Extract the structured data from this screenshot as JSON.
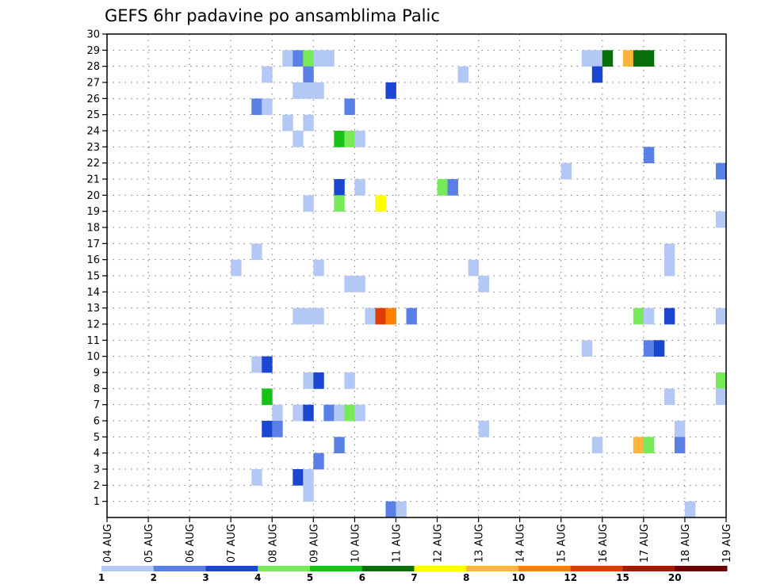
{
  "chart_data": {
    "type": "heatmap",
    "title": "GEFS 6hr padavine po ansamblima Palic",
    "xlabel": "",
    "ylabel": "",
    "x_tick_labels": [
      "04 AUG",
      "05 AUG",
      "06 AUG",
      "07 AUG",
      "08 AUG",
      "09 AUG",
      "10 AUG",
      "11 AUG",
      "12 AUG",
      "13 AUG",
      "14 AUG",
      "15 AUG",
      "16 AUG",
      "17 AUG",
      "18 AUG",
      "19 AUG"
    ],
    "x_unit": "6-hour steps (4 per day)",
    "xlim": [
      0,
      60
    ],
    "y_tick_labels": [
      "1",
      "2",
      "3",
      "4",
      "5",
      "6",
      "7",
      "8",
      "9",
      "10",
      "11",
      "12",
      "13",
      "14",
      "15",
      "16",
      "17",
      "18",
      "19",
      "20",
      "21",
      "22",
      "23",
      "24",
      "25",
      "26",
      "27",
      "28",
      "29",
      "30"
    ],
    "ylim": [
      0,
      30
    ],
    "grid": true,
    "colorbar": {
      "placement": "bottom",
      "labels": [
        "1",
        "2",
        "3",
        "4",
        "5",
        "6",
        "7",
        "8",
        "10",
        "12",
        "15",
        "20"
      ],
      "levels": [
        1,
        2,
        3,
        4,
        5,
        6,
        7,
        8,
        10,
        12,
        15,
        20,
        25
      ],
      "colors": [
        "#b4c8f5",
        "#5a80e6",
        "#1a46d2",
        "#78ea5a",
        "#16c216",
        "#0a6e0a",
        "#ffff00",
        "#ffb43c",
        "#ff7f00",
        "#e13c00",
        "#a51a00",
        "#6e0000"
      ]
    },
    "cells": [
      [
        17,
        29,
        1
      ],
      [
        18,
        29,
        2
      ],
      [
        19,
        29,
        4
      ],
      [
        20,
        29,
        1
      ],
      [
        21,
        29,
        1
      ],
      [
        46,
        29,
        1
      ],
      [
        47,
        29,
        1
      ],
      [
        48,
        29,
        6
      ],
      [
        50,
        29,
        8
      ],
      [
        51,
        29,
        6
      ],
      [
        52,
        29,
        6
      ],
      [
        15,
        28,
        1
      ],
      [
        19,
        28,
        2
      ],
      [
        34,
        28,
        1
      ],
      [
        47,
        28,
        3
      ],
      [
        18,
        27,
        1
      ],
      [
        19,
        27,
        1
      ],
      [
        20,
        27,
        1
      ],
      [
        27,
        27,
        3
      ],
      [
        14,
        26,
        2
      ],
      [
        15,
        26,
        1
      ],
      [
        23,
        26,
        2
      ],
      [
        17,
        25,
        1
      ],
      [
        19,
        25,
        1
      ],
      [
        18,
        24,
        1
      ],
      [
        22,
        24,
        5
      ],
      [
        23,
        24,
        4
      ],
      [
        24,
        24,
        1
      ],
      [
        52,
        23,
        2
      ],
      [
        44,
        22,
        1
      ],
      [
        59,
        22,
        2
      ],
      [
        22,
        21,
        3
      ],
      [
        24,
        21,
        1
      ],
      [
        32,
        21,
        4
      ],
      [
        33,
        21,
        2
      ],
      [
        19,
        20,
        1
      ],
      [
        22,
        20,
        4
      ],
      [
        26,
        20,
        7
      ],
      [
        59,
        19,
        1
      ],
      [
        14,
        17,
        1
      ],
      [
        54,
        17,
        1
      ],
      [
        12,
        16,
        1
      ],
      [
        20,
        16,
        1
      ],
      [
        35,
        16,
        1
      ],
      [
        54,
        16,
        1
      ],
      [
        23,
        15,
        1
      ],
      [
        24,
        15,
        1
      ],
      [
        36,
        15,
        1
      ],
      [
        18,
        13,
        1
      ],
      [
        19,
        13,
        1
      ],
      [
        20,
        13,
        1
      ],
      [
        25,
        13,
        1
      ],
      [
        26,
        13,
        12
      ],
      [
        27,
        13,
        10
      ],
      [
        29,
        13,
        2
      ],
      [
        51,
        13,
        4
      ],
      [
        52,
        13,
        1
      ],
      [
        54,
        13,
        3
      ],
      [
        59,
        13,
        1
      ],
      [
        46,
        11,
        1
      ],
      [
        52,
        11,
        2
      ],
      [
        53,
        11,
        3
      ],
      [
        14,
        10,
        1
      ],
      [
        15,
        10,
        3
      ],
      [
        19,
        9,
        1
      ],
      [
        20,
        9,
        3
      ],
      [
        23,
        9,
        1
      ],
      [
        59,
        9,
        4
      ],
      [
        15,
        8,
        5
      ],
      [
        54,
        8,
        1
      ],
      [
        59,
        8,
        1
      ],
      [
        16,
        7,
        1
      ],
      [
        18,
        7,
        1
      ],
      [
        19,
        7,
        3
      ],
      [
        21,
        7,
        2
      ],
      [
        22,
        7,
        1
      ],
      [
        23,
        7,
        4
      ],
      [
        24,
        7,
        1
      ],
      [
        15,
        6,
        3
      ],
      [
        16,
        6,
        2
      ],
      [
        36,
        6,
        1
      ],
      [
        55,
        6,
        1
      ],
      [
        22,
        5,
        2
      ],
      [
        47,
        5,
        1
      ],
      [
        51,
        5,
        8
      ],
      [
        52,
        5,
        4
      ],
      [
        55,
        5,
        2
      ],
      [
        20,
        4,
        2
      ],
      [
        14,
        3,
        1
      ],
      [
        18,
        3,
        3
      ],
      [
        19,
        3,
        1
      ],
      [
        19,
        2,
        1
      ],
      [
        27,
        1,
        2
      ],
      [
        28,
        1,
        1
      ],
      [
        56,
        1,
        1
      ]
    ]
  }
}
